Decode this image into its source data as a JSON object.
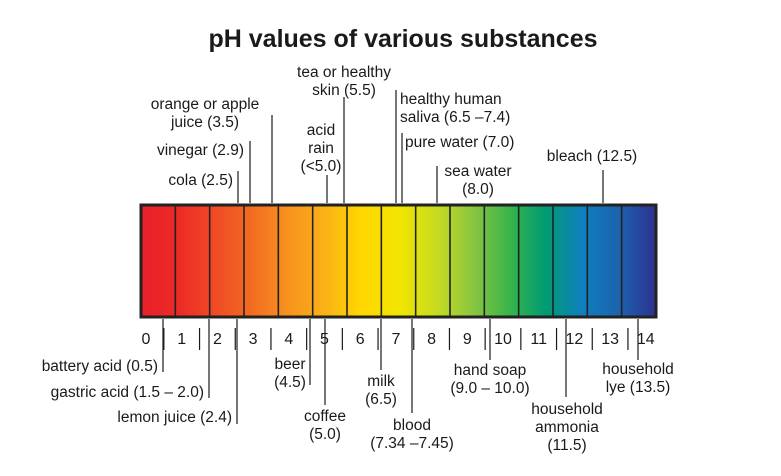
{
  "title": "pH values of various substances",
  "scale": {
    "min": 0,
    "max": 14,
    "ticks": [
      "0",
      "1",
      "2",
      "3",
      "4",
      "5",
      "6",
      "7",
      "8",
      "9",
      "10",
      "11",
      "12",
      "13",
      "14"
    ],
    "segment_colors": [
      "#e8202a",
      "#ec2a26",
      "#f04a25",
      "#f36b21",
      "#f7931e",
      "#fbb117",
      "#ffd700",
      "#f2e500",
      "#c9dc1f",
      "#8cc63f",
      "#39b54a",
      "#009b72",
      "#0f7fc0",
      "#1c62ad",
      "#2e3192"
    ]
  },
  "labels_above": [
    {
      "id": "bleach",
      "lines": [
        "bleach (12.5)"
      ],
      "ph": 12.5
    },
    {
      "id": "sea-water",
      "lines": [
        "sea water",
        "(8.0)"
      ],
      "ph": 8.0
    },
    {
      "id": "pure-water",
      "lines": [
        "pure water (7.0)"
      ],
      "ph": 7.0
    },
    {
      "id": "saliva",
      "lines": [
        "healthy human",
        "saliva (6.5 –7.4)"
      ],
      "ph": 6.9
    },
    {
      "id": "acid-rain",
      "lines": [
        "acid",
        "rain",
        "(<5.0)"
      ],
      "ph": 5.0
    },
    {
      "id": "tea",
      "lines": [
        "tea or healthy",
        "skin (5.5)"
      ],
      "ph": 5.5
    },
    {
      "id": "orange-juice",
      "lines": [
        "orange or apple",
        "juice (3.5)"
      ],
      "ph": 3.5
    },
    {
      "id": "vinegar",
      "lines": [
        "vinegar (2.9)"
      ],
      "ph": 2.9
    },
    {
      "id": "cola",
      "lines": [
        "cola (2.5)"
      ],
      "ph": 2.5
    }
  ],
  "labels_below": [
    {
      "id": "battery-acid",
      "lines": [
        "battery acid (0.5)"
      ],
      "ph": 0.5
    },
    {
      "id": "gastric-acid",
      "lines": [
        "gastric acid (1.5 – 2.0)"
      ],
      "ph": 1.8
    },
    {
      "id": "lemon-juice",
      "lines": [
        "lemon juice (2.4)"
      ],
      "ph": 2.4
    },
    {
      "id": "beer",
      "lines": [
        "beer",
        "(4.5)"
      ],
      "ph": 4.5
    },
    {
      "id": "coffee",
      "lines": [
        "coffee",
        "(5.0)"
      ],
      "ph": 5.0
    },
    {
      "id": "milk",
      "lines": [
        "milk",
        "(6.5)"
      ],
      "ph": 6.5
    },
    {
      "id": "blood",
      "lines": [
        "blood",
        "(7.34 –7.45)"
      ],
      "ph": 7.4
    },
    {
      "id": "hand-soap",
      "lines": [
        "hand soap",
        "(9.0 – 10.0)"
      ],
      "ph": 9.5
    },
    {
      "id": "household-ammonia",
      "lines": [
        "household",
        "ammonia",
        "(11.5)"
      ],
      "ph": 11.5
    },
    {
      "id": "household-lye",
      "lines": [
        "household",
        "lye (13.5)"
      ],
      "ph": 13.5
    }
  ]
}
